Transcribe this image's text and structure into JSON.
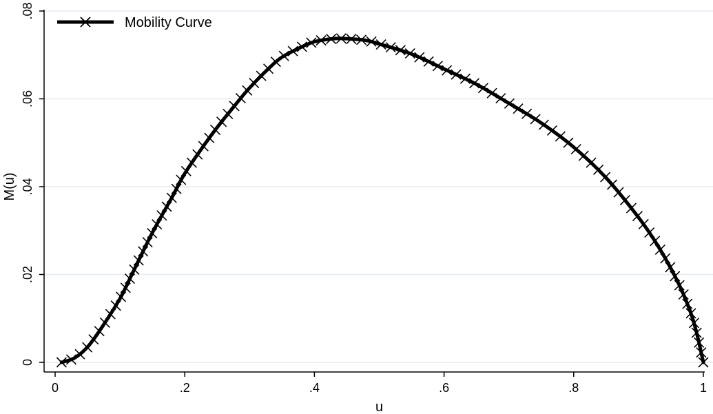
{
  "chart_data": {
    "type": "line",
    "xlabel": "u",
    "ylabel": "M(u)",
    "xlim": [
      0,
      1
    ],
    "ylim": [
      0,
      0.08
    ],
    "x_ticks": [
      {
        "value": 0,
        "label": "0"
      },
      {
        "value": 0.2,
        "label": ".2"
      },
      {
        "value": 0.4,
        "label": ".4"
      },
      {
        "value": 0.6,
        "label": ".6"
      },
      {
        "value": 0.8,
        "label": ".8"
      },
      {
        "value": 1,
        "label": "1"
      }
    ],
    "y_ticks": [
      {
        "value": 0,
        "label": "0"
      },
      {
        "value": 0.02,
        "label": ".02"
      },
      {
        "value": 0.04,
        "label": ".04"
      },
      {
        "value": 0.06,
        "label": ".06"
      },
      {
        "value": 0.08,
        "label": ".08"
      }
    ],
    "grid": "horizontal",
    "legend_position": "top-left",
    "colors": {
      "series": "#000000",
      "grid": "#e6ebf2",
      "axis": "#000000"
    },
    "series": [
      {
        "name": "Mobility Curve",
        "marker": "x",
        "points": [
          {
            "x": 0.01,
            "y": 0.0
          },
          {
            "x": 0.03,
            "y": 0.001
          },
          {
            "x": 0.05,
            "y": 0.0035
          },
          {
            "x": 0.07,
            "y": 0.0075
          },
          {
            "x": 0.1,
            "y": 0.0145
          },
          {
            "x": 0.12,
            "y": 0.0205
          },
          {
            "x": 0.15,
            "y": 0.0295
          },
          {
            "x": 0.18,
            "y": 0.0375
          },
          {
            "x": 0.2,
            "y": 0.043
          },
          {
            "x": 0.23,
            "y": 0.0495
          },
          {
            "x": 0.25,
            "y": 0.0535
          },
          {
            "x": 0.28,
            "y": 0.059
          },
          {
            "x": 0.3,
            "y": 0.0625
          },
          {
            "x": 0.33,
            "y": 0.067
          },
          {
            "x": 0.35,
            "y": 0.0695
          },
          {
            "x": 0.38,
            "y": 0.0718
          },
          {
            "x": 0.4,
            "y": 0.073
          },
          {
            "x": 0.43,
            "y": 0.0737
          },
          {
            "x": 0.45,
            "y": 0.0737
          },
          {
            "x": 0.48,
            "y": 0.0733
          },
          {
            "x": 0.5,
            "y": 0.0725
          },
          {
            "x": 0.55,
            "y": 0.0702
          },
          {
            "x": 0.6,
            "y": 0.0668
          },
          {
            "x": 0.65,
            "y": 0.0633
          },
          {
            "x": 0.7,
            "y": 0.059
          },
          {
            "x": 0.75,
            "y": 0.0545
          },
          {
            "x": 0.8,
            "y": 0.049
          },
          {
            "x": 0.85,
            "y": 0.042
          },
          {
            "x": 0.9,
            "y": 0.033
          },
          {
            "x": 0.93,
            "y": 0.0265
          },
          {
            "x": 0.96,
            "y": 0.0185
          },
          {
            "x": 0.98,
            "y": 0.0115
          },
          {
            "x": 0.99,
            "y": 0.0065
          },
          {
            "x": 1.0,
            "y": 0.0
          }
        ]
      }
    ]
  }
}
